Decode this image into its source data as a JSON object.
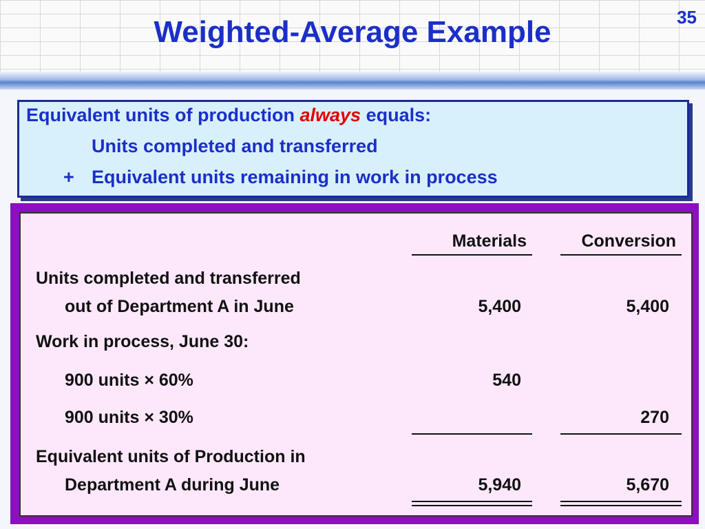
{
  "slide_number": "35",
  "title": "Weighted-Average Example",
  "callout": {
    "line1": {
      "text": "Equivalent units of production",
      "emphasis": "always",
      "end": "equals:"
    },
    "line2": "Units completed and transferred",
    "line3": {
      "sign": "+",
      "text": "Equivalent units remaining in work in process"
    }
  },
  "table": {
    "headers": [
      "Materials",
      "Conversion"
    ],
    "rows": [
      {
        "label": "Units completed and transferred",
        "sublabel": "out of Department A in June",
        "materials": "5,400",
        "conversion": "5,400"
      },
      {
        "label": "Work in process, June 30:"
      },
      {
        "sublabel": "900 units × 60%",
        "materials": "540"
      },
      {
        "sublabel": "900 units × 30%",
        "conversion": "270"
      },
      {
        "label": "Equivalent units of Production in",
        "sublabel": "Department A during June",
        "materials": "5,940",
        "conversion": "5,670"
      }
    ]
  }
}
